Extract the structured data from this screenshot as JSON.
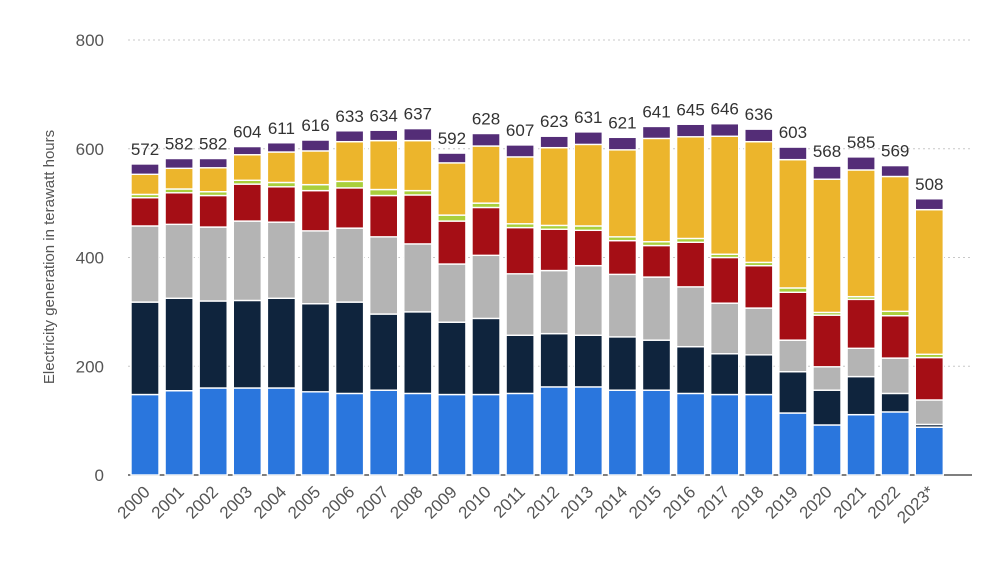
{
  "chart_data": {
    "type": "bar",
    "stacked": true,
    "title": "",
    "xlabel": "",
    "ylabel": "Electricity generation in terawatt hours",
    "ylim": [
      0,
      800
    ],
    "yticks": [
      0,
      200,
      400,
      600,
      800
    ],
    "grid": true,
    "legend": "none",
    "categories": [
      "2000",
      "2001",
      "2002",
      "2003",
      "2004",
      "2005",
      "2006",
      "2007",
      "2008",
      "2009",
      "2010",
      "2011",
      "2012",
      "2013",
      "2014",
      "2015",
      "2016",
      "2017",
      "2018",
      "2019",
      "2020",
      "2021",
      "2022",
      "2023*"
    ],
    "totals": [
      "572",
      "582",
      "582",
      "604",
      "611",
      "616",
      "633",
      "634",
      "637",
      "592",
      "628",
      "607",
      "623",
      "631",
      "621",
      "641",
      "645",
      "646",
      "636",
      "603",
      "568",
      "585",
      "569",
      "508"
    ],
    "series": [
      {
        "color": "#2a76dd",
        "values": [
          148,
          155,
          160,
          160,
          160,
          153,
          150,
          156,
          150,
          148,
          148,
          150,
          162,
          162,
          156,
          156,
          150,
          148,
          148,
          114,
          92,
          111,
          116,
          88
        ]
      },
      {
        "color": "#0f243d",
        "values": [
          170,
          170,
          160,
          161,
          165,
          162,
          168,
          140,
          150,
          133,
          140,
          107,
          98,
          95,
          98,
          92,
          86,
          75,
          73,
          76,
          64,
          70,
          34,
          5
        ]
      },
      {
        "color": "#b4b4b4",
        "values": [
          140,
          136,
          136,
          146,
          140,
          134,
          136,
          142,
          125,
          107,
          116,
          113,
          116,
          128,
          115,
          116,
          110,
          93,
          86,
          58,
          43,
          52,
          65,
          45
        ]
      },
      {
        "color": "#a50e15",
        "values": [
          52,
          58,
          58,
          68,
          65,
          74,
          74,
          76,
          90,
          79,
          88,
          85,
          76,
          65,
          62,
          58,
          82,
          84,
          78,
          88,
          95,
          90,
          78,
          78
        ]
      },
      {
        "color": "#a9cf3c",
        "values": [
          6,
          7,
          7,
          7,
          8,
          11,
          12,
          11,
          8,
          11,
          8,
          7,
          7,
          8,
          7,
          7,
          7,
          6,
          6,
          8,
          5,
          5,
          8,
          6
        ]
      },
      {
        "color": "#ecb52c",
        "values": [
          37,
          38,
          44,
          47,
          56,
          62,
          73,
          90,
          92,
          96,
          105,
          123,
          143,
          150,
          160,
          190,
          187,
          217,
          222,
          236,
          245,
          233,
          248,
          266
        ]
      },
      {
        "color": "#542d77",
        "values": [
          19,
          18,
          17,
          15,
          17,
          20,
          20,
          19,
          22,
          18,
          23,
          22,
          21,
          23,
          23,
          22,
          23,
          23,
          23,
          23,
          24,
          24,
          20,
          20
        ]
      }
    ]
  }
}
